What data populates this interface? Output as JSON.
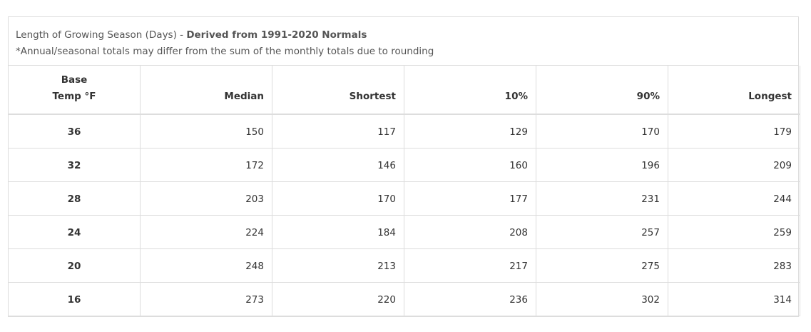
{
  "caption": {
    "title_plain": "Length of Growing Season (Days) - ",
    "title_bold": "Derived from 1991-2020 Normals",
    "note": "*Annual/seasonal totals may differ from the sum of the monthly totals due to rounding"
  },
  "table": {
    "headers": {
      "base_line1": "Base",
      "base_line2": "Temp °F",
      "median": "Median",
      "shortest": "Shortest",
      "p10": "10%",
      "p90": "90%",
      "longest": "Longest"
    },
    "rows": [
      [
        "36",
        "150",
        "117",
        "129",
        "170",
        "179"
      ],
      [
        "32",
        "172",
        "146",
        "160",
        "196",
        "209"
      ],
      [
        "28",
        "203",
        "170",
        "177",
        "231",
        "244"
      ],
      [
        "24",
        "224",
        "184",
        "208",
        "257",
        "259"
      ],
      [
        "20",
        "248",
        "213",
        "217",
        "275",
        "283"
      ],
      [
        "16",
        "273",
        "220",
        "236",
        "302",
        "314"
      ]
    ]
  }
}
